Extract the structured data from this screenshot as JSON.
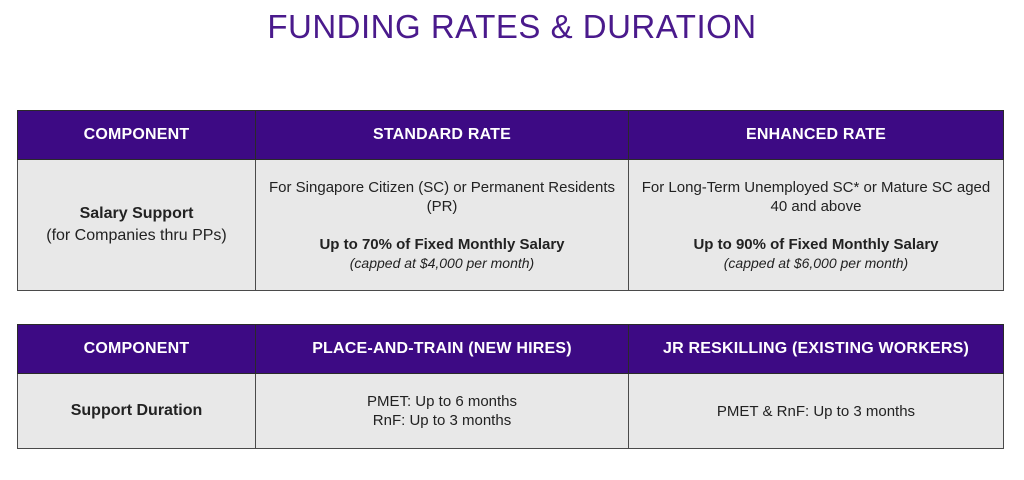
{
  "page": {
    "title": "FUNDING RATES & DURATION"
  },
  "rates_table": {
    "headers": [
      "COMPONENT",
      "STANDARD RATE",
      "ENHANCED RATE"
    ],
    "row": {
      "label": "Salary Support",
      "sublabel": "(for Companies thru PPs)",
      "standard": {
        "eligibility": "For Singapore Citizen (SC) or Permanent Residents (PR)",
        "rate": "Up to 70% of Fixed Monthly Salary",
        "cap": "(capped at $4,000 per month)"
      },
      "enhanced": {
        "eligibility": "For Long-Term Unemployed SC* or Mature SC aged 40 and above",
        "rate": "Up to 90% of Fixed Monthly Salary",
        "cap": "(capped at $6,000 per month)"
      }
    }
  },
  "duration_table": {
    "headers": [
      "COMPONENT",
      "PLACE-AND-TRAIN (NEW HIRES)",
      "JR RESKILLING (EXISTING WORKERS)"
    ],
    "row": {
      "label": "Support Duration",
      "place_and_train": [
        "PMET: Up to 6 months",
        "RnF: Up to 3 months"
      ],
      "jr_reskilling": "PMET & RnF: Up to 3 months"
    }
  },
  "colors": {
    "title": "#4a1a8c",
    "header_bg": "#3d0a84",
    "header_text": "#ffffff",
    "cell_bg": "#e8e8e8"
  }
}
